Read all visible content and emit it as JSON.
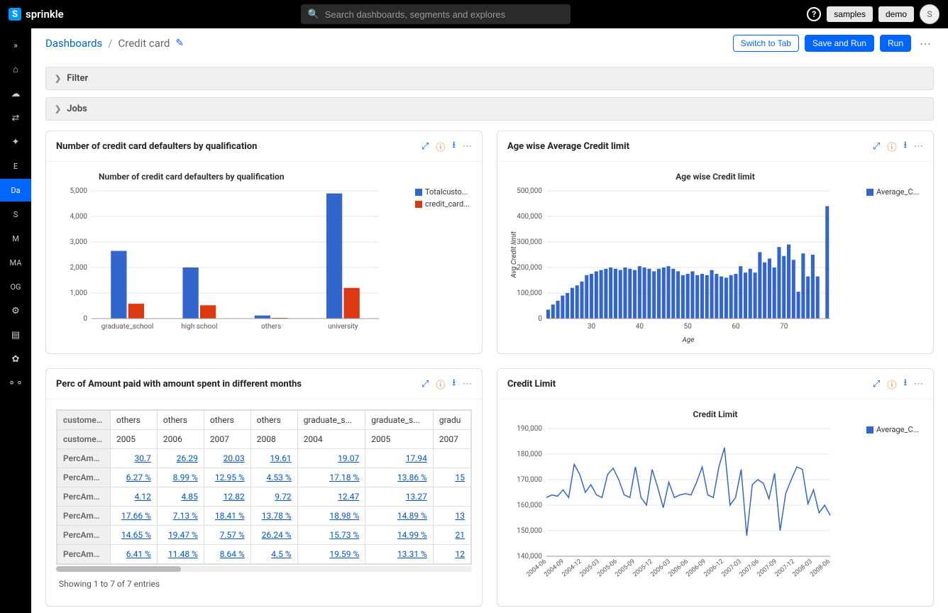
{
  "topbar": {
    "brand": "sprinkle",
    "search_placeholder": "Search dashboards, segments and explores",
    "samples_btn": "samples",
    "demo_btn": "demo",
    "avatar_letter": "S",
    "bg_color": "#000000"
  },
  "sidebar": {
    "bg_color": "#000000",
    "active_color": "#0066ff",
    "items": [
      {
        "icon": "»",
        "name": "expand"
      },
      {
        "icon": "⌂",
        "name": "home"
      },
      {
        "icon": "☁",
        "name": "cloud"
      },
      {
        "icon": "⇄",
        "name": "transfer"
      },
      {
        "icon": "✦",
        "name": "share"
      },
      {
        "text": "E",
        "name": "explore"
      },
      {
        "text": "Da",
        "name": "dashboards",
        "active": true
      },
      {
        "text": "S",
        "name": "segments"
      },
      {
        "text": "M",
        "name": "models"
      },
      {
        "text": "MA",
        "name": "ma"
      },
      {
        "text": "OG",
        "name": "og"
      },
      {
        "icon": "⚙",
        "name": "settings1"
      },
      {
        "icon": "▤",
        "name": "list"
      },
      {
        "icon": "✿",
        "name": "settings2"
      },
      {
        "icon": "⚬⚬",
        "name": "nodes"
      }
    ]
  },
  "breadcrumbs": {
    "root": "Dashboards",
    "current": "Credit card"
  },
  "header_actions": {
    "switch": "Switch to Tab",
    "save": "Save and Run",
    "run": "Run"
  },
  "collapse": {
    "filter": "Filter",
    "jobs": "Jobs"
  },
  "card1": {
    "title": "Number of credit card defaulters by qualification",
    "chart_title": "Number of credit card defaulters by qualification",
    "type": "bar-grouped",
    "categories": [
      "graduate_school",
      "high school",
      "others",
      "university"
    ],
    "series": [
      {
        "label": "Totalcusto...",
        "color": "#3366cc",
        "values": [
          2650,
          2000,
          120,
          4900
        ]
      },
      {
        "label": "credit_card...",
        "color": "#dc3912",
        "values": [
          580,
          520,
          30,
          1200
        ]
      }
    ],
    "ylim": [
      0,
      5000
    ],
    "ytick_step": 1000,
    "grid_color": "#e5e5e5",
    "background": "#ffffff"
  },
  "card2": {
    "title": "Age wise Average Credit limit",
    "chart_title": "Age wise Credit limit",
    "type": "bar",
    "xlabel": "Age",
    "ylabel": "Avg Credit limit",
    "color": "#3366cc",
    "legend_label": "Average_C...",
    "x_start": 21,
    "x_end": 79,
    "xticks": [
      30,
      40,
      50,
      60,
      70
    ],
    "ylim": [
      0,
      500000
    ],
    "ytick_step": 100000,
    "values": [
      35000,
      55000,
      70000,
      90000,
      100000,
      120000,
      130000,
      145000,
      170000,
      175000,
      185000,
      190000,
      195000,
      200000,
      195000,
      190000,
      200000,
      195000,
      190000,
      205000,
      200000,
      195000,
      185000,
      195000,
      200000,
      205000,
      195000,
      185000,
      170000,
      175000,
      185000,
      170000,
      175000,
      170000,
      190000,
      175000,
      165000,
      160000,
      170000,
      175000,
      205000,
      180000,
      195000,
      180000,
      260000,
      220000,
      235000,
      200000,
      280000,
      245000,
      290000,
      230000,
      105000,
      255000,
      165000,
      250000,
      165000,
      0,
      440000
    ],
    "grid_color": "#e5e5e5"
  },
  "card3": {
    "title": "Perc of Amount paid with amount spent in different months",
    "columns": [
      "customers...",
      "others",
      "others",
      "others",
      "others",
      "graduate_s...",
      "graduate_s...",
      "gradu"
    ],
    "header_row2_label": "customers...",
    "header_row2": [
      "2005",
      "2006",
      "2007",
      "2008",
      "2004",
      "2005",
      "2007"
    ],
    "rows": [
      {
        "label": "PercAmou...",
        "vals": [
          "30.7",
          "26.29",
          "20.03",
          "19.61",
          "19.07",
          "17.94",
          ""
        ]
      },
      {
        "label": "PercAmou...",
        "vals": [
          "6.27 %",
          "8.99 %",
          "12.95 %",
          "4.53 %",
          "17.18 %",
          "13.86 %",
          "15"
        ]
      },
      {
        "label": "PercAmou...",
        "vals": [
          "4.12",
          "4.85",
          "12.82",
          "9.72",
          "12.47",
          "13.27",
          ""
        ]
      },
      {
        "label": "PercAmou...",
        "vals": [
          "17.66 %",
          "7.13 %",
          "18.41 %",
          "13.78 %",
          "18.98 %",
          "14.89 %",
          "13"
        ]
      },
      {
        "label": "PercAmou...",
        "vals": [
          "14.65 %",
          "19.47 %",
          "7.57 %",
          "26.24 %",
          "15.73 %",
          "14.99 %",
          "21"
        ]
      },
      {
        "label": "PercAmou...",
        "vals": [
          "6.41 %",
          "11.48 %",
          "8.64 %",
          "4.5 %",
          "19.59 %",
          "13.31 %",
          "12"
        ]
      }
    ],
    "footer": "Showing 1 to 7 of 7 entries",
    "link_color": "#0055cc"
  },
  "card4": {
    "title": "Credit Limit",
    "chart_title": "Credit Limit",
    "type": "line",
    "legend_label": "Average_C...",
    "x_labels": [
      "2004-06",
      "2004-09",
      "2004-12",
      "2005-03",
      "2005-06",
      "2005-09",
      "2005-12",
      "2006-03",
      "2006-06",
      "2006-09",
      "2006-12",
      "2007-03",
      "2007-06",
      "2007-09",
      "2007-12",
      "2008-03",
      "2008-06"
    ],
    "ylim": [
      140000,
      190000
    ],
    "ytick_step": 10000,
    "color": "#3366cc",
    "values": [
      163000,
      164000,
      163500,
      166000,
      163000,
      176000,
      172000,
      165000,
      168000,
      164000,
      163000,
      172000,
      174500,
      170000,
      164000,
      163000,
      175000,
      163000,
      160000,
      174000,
      167000,
      159000,
      169000,
      163000,
      164000,
      164500,
      164000,
      169000,
      175000,
      164000,
      163000,
      175000,
      182500,
      160000,
      163000,
      174000,
      148000,
      168000,
      170000,
      168500,
      162500,
      172500,
      150000,
      164500,
      170000,
      175000,
      174000,
      160500,
      166000,
      157000,
      160000,
      156000
    ],
    "grid_color": "#e5e5e5"
  }
}
